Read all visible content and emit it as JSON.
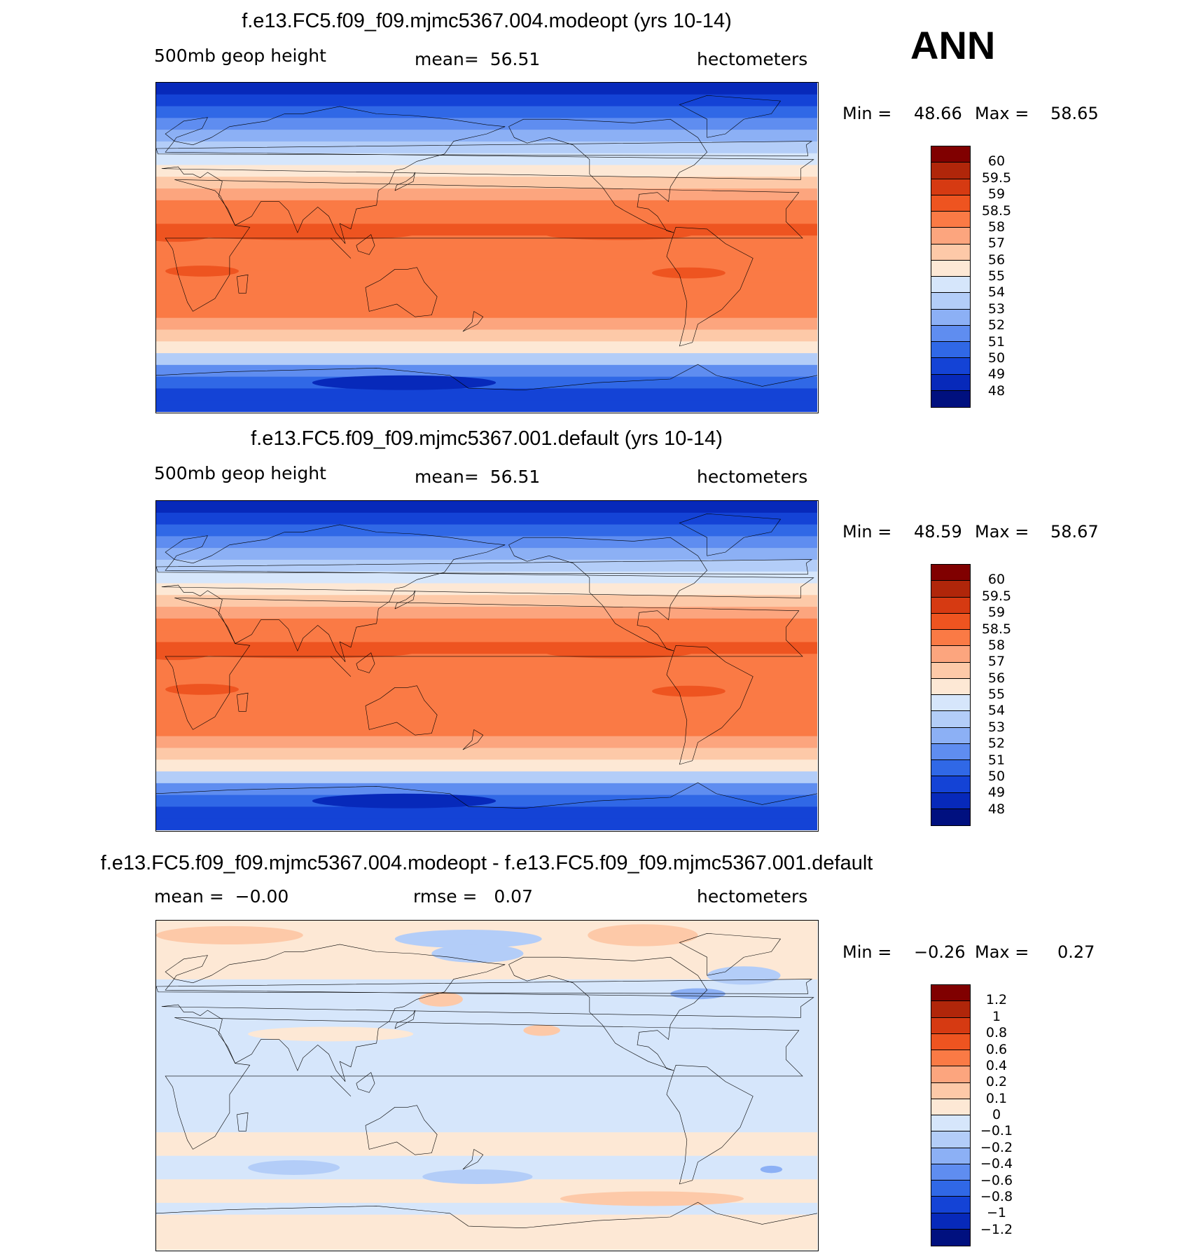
{
  "season": "ANN",
  "chart_data": [
    {
      "type": "heatmap",
      "title": "f.e13.FC5.f09_f09.mjmc5367.004.modeopt (yrs 10-14)",
      "variable": "500mb geop height",
      "stat_left": "",
      "stat_mid": "mean=  56.51",
      "units": "hectometers",
      "min_label": "Min =",
      "min": "48.66",
      "max_label": "Max =",
      "max": "58.65",
      "mean": 56.51,
      "colorbar_labels": [
        "60",
        "59.5",
        "59",
        "58.5",
        "58",
        "57",
        "56",
        "55",
        "54",
        "53",
        "52",
        "51",
        "50",
        "49",
        "48"
      ],
      "colorbar_colors": [
        "#800000",
        "#b0260a",
        "#d63a12",
        "#ee5420",
        "#fa7a45",
        "#fca57e",
        "#fdc9a8",
        "#fde8d5",
        "#d6e6fb",
        "#b3cdf8",
        "#8cb0f5",
        "#5f8df0",
        "#3068e6",
        "#1443d6",
        "#0729ba",
        "#00107f"
      ],
      "field_profile": [
        48.7,
        49.2,
        50.3,
        51.6,
        52.8,
        53.9,
        54.9,
        55.9,
        56.8,
        57.5,
        58.0,
        58.3,
        58.5,
        58.4,
        58.3,
        58.4,
        58.3,
        58.3,
        58.2,
        58.0,
        57.3,
        56.3,
        55.1,
        53.5,
        51.8,
        50.6,
        49.8,
        49.0
      ],
      "field_anomalies": [
        {
          "lon": 80,
          "lat": 7,
          "rx": 60,
          "ry": 3,
          "value": 58.6
        },
        {
          "lon": 252,
          "lat": 7,
          "rx": 40,
          "ry": 3,
          "value": 58.6
        },
        {
          "lon": 10,
          "lat": 7,
          "rx": 20,
          "ry": 4,
          "value": 58.6
        },
        {
          "lon": 25,
          "lat": -13,
          "rx": 20,
          "ry": 3,
          "value": 58.6
        },
        {
          "lon": 290,
          "lat": -14,
          "rx": 20,
          "ry": 3,
          "value": 58.6
        },
        {
          "lon": 135,
          "lat": -74,
          "rx": 50,
          "ry": 4,
          "value": 48.2
        }
      ],
      "range": [
        48,
        60
      ]
    },
    {
      "type": "heatmap",
      "title": "f.e13.FC5.f09_f09.mjmc5367.001.default (yrs 10-14)",
      "variable": "500mb geop height",
      "stat_left": "",
      "stat_mid": "mean=  56.51",
      "units": "hectometers",
      "min_label": "Min =",
      "min": "48.59",
      "max_label": "Max =",
      "max": "58.67",
      "mean": 56.51,
      "colorbar_labels": [
        "60",
        "59.5",
        "59",
        "58.5",
        "58",
        "57",
        "56",
        "55",
        "54",
        "53",
        "52",
        "51",
        "50",
        "49",
        "48"
      ],
      "colorbar_colors": [
        "#800000",
        "#b0260a",
        "#d63a12",
        "#ee5420",
        "#fa7a45",
        "#fca57e",
        "#fdc9a8",
        "#fde8d5",
        "#d6e6fb",
        "#b3cdf8",
        "#8cb0f5",
        "#5f8df0",
        "#3068e6",
        "#1443d6",
        "#0729ba",
        "#00107f"
      ],
      "field_profile": [
        48.6,
        49.2,
        50.3,
        51.6,
        52.8,
        53.9,
        54.9,
        55.9,
        56.8,
        57.5,
        58.0,
        58.3,
        58.5,
        58.4,
        58.3,
        58.4,
        58.3,
        58.3,
        58.2,
        58.0,
        57.3,
        56.3,
        55.1,
        53.5,
        51.8,
        50.6,
        49.8,
        49.0
      ],
      "field_anomalies": [
        {
          "lon": 80,
          "lat": 7,
          "rx": 60,
          "ry": 3,
          "value": 58.6
        },
        {
          "lon": 252,
          "lat": 7,
          "rx": 40,
          "ry": 3,
          "value": 58.6
        },
        {
          "lon": 10,
          "lat": 7,
          "rx": 20,
          "ry": 4,
          "value": 58.6
        },
        {
          "lon": 25,
          "lat": -13,
          "rx": 20,
          "ry": 3,
          "value": 58.6
        },
        {
          "lon": 290,
          "lat": -14,
          "rx": 20,
          "ry": 3,
          "value": 58.6
        },
        {
          "lon": 135,
          "lat": -74,
          "rx": 50,
          "ry": 4,
          "value": 48.2
        }
      ],
      "range": [
        48,
        60
      ]
    },
    {
      "type": "heatmap",
      "title": "f.e13.FC5.f09_f09.mjmc5367.004.modeopt - f.e13.FC5.f09_f09.mjmc5367.001.default",
      "variable": "",
      "stat_left": "mean =  −0.00",
      "stat_mid": "rmse =   0.07",
      "units": "hectometers",
      "min_label": "Min =",
      "min": "−0.26",
      "max_label": "Max =",
      "max": "0.27",
      "mean": -0.0,
      "rmse": 0.07,
      "colorbar_labels": [
        "1.2",
        "1",
        "0.8",
        "0.6",
        "0.4",
        "0.2",
        "0.1",
        "0",
        "−0.1",
        "−0.2",
        "−0.4",
        "−0.6",
        "−0.8",
        "−1",
        "−1.2"
      ],
      "colorbar_colors": [
        "#800000",
        "#b0260a",
        "#d63a12",
        "#ee5420",
        "#fa7a45",
        "#fca57e",
        "#fdc9a8",
        "#fde8d5",
        "#d6e6fb",
        "#b3cdf8",
        "#8cb0f5",
        "#5f8df0",
        "#3068e6",
        "#1443d6",
        "#0729ba",
        "#00107f"
      ],
      "field_profile": [
        0.05,
        0.05,
        0.05,
        0.04,
        0.02,
        -0.03,
        -0.05,
        -0.04,
        -0.02,
        -0.03,
        -0.05,
        -0.06,
        -0.05,
        -0.05,
        -0.05,
        -0.05,
        -0.04,
        -0.02,
        0.03,
        0.04,
        -0.03,
        -0.04,
        0.03,
        0.05,
        -0.02,
        0.02,
        0.05,
        0.06
      ],
      "field_anomalies": [
        {
          "lon": 40,
          "lat": 82,
          "rx": 40,
          "ry": 5,
          "value": 0.12
        },
        {
          "lon": 170,
          "lat": 80,
          "rx": 40,
          "ry": 5,
          "value": -0.12
        },
        {
          "lon": 175,
          "lat": 72,
          "rx": 25,
          "ry": 5,
          "value": -0.15
        },
        {
          "lon": 265,
          "lat": 82,
          "rx": 30,
          "ry": 6,
          "value": 0.15
        },
        {
          "lon": 320,
          "lat": 60,
          "rx": 20,
          "ry": 5,
          "value": -0.13
        },
        {
          "lon": 295,
          "lat": 50,
          "rx": 15,
          "ry": 3,
          "value": -0.22
        },
        {
          "lon": 155,
          "lat": 47,
          "rx": 12,
          "ry": 4,
          "value": 0.12
        },
        {
          "lon": 210,
          "lat": 30,
          "rx": 10,
          "ry": 3,
          "value": 0.12
        },
        {
          "lon": 95,
          "lat": 28,
          "rx": 45,
          "ry": 4,
          "value": 0.05
        },
        {
          "lon": 75,
          "lat": -45,
          "rx": 25,
          "ry": 4,
          "value": -0.14
        },
        {
          "lon": 175,
          "lat": -50,
          "rx": 30,
          "ry": 4,
          "value": -0.14
        },
        {
          "lon": 270,
          "lat": -62,
          "rx": 50,
          "ry": 4,
          "value": 0.13
        },
        {
          "lon": 335,
          "lat": -46,
          "rx": 6,
          "ry": 2,
          "value": -0.25
        }
      ],
      "range": [
        -1.2,
        1.2
      ]
    }
  ]
}
